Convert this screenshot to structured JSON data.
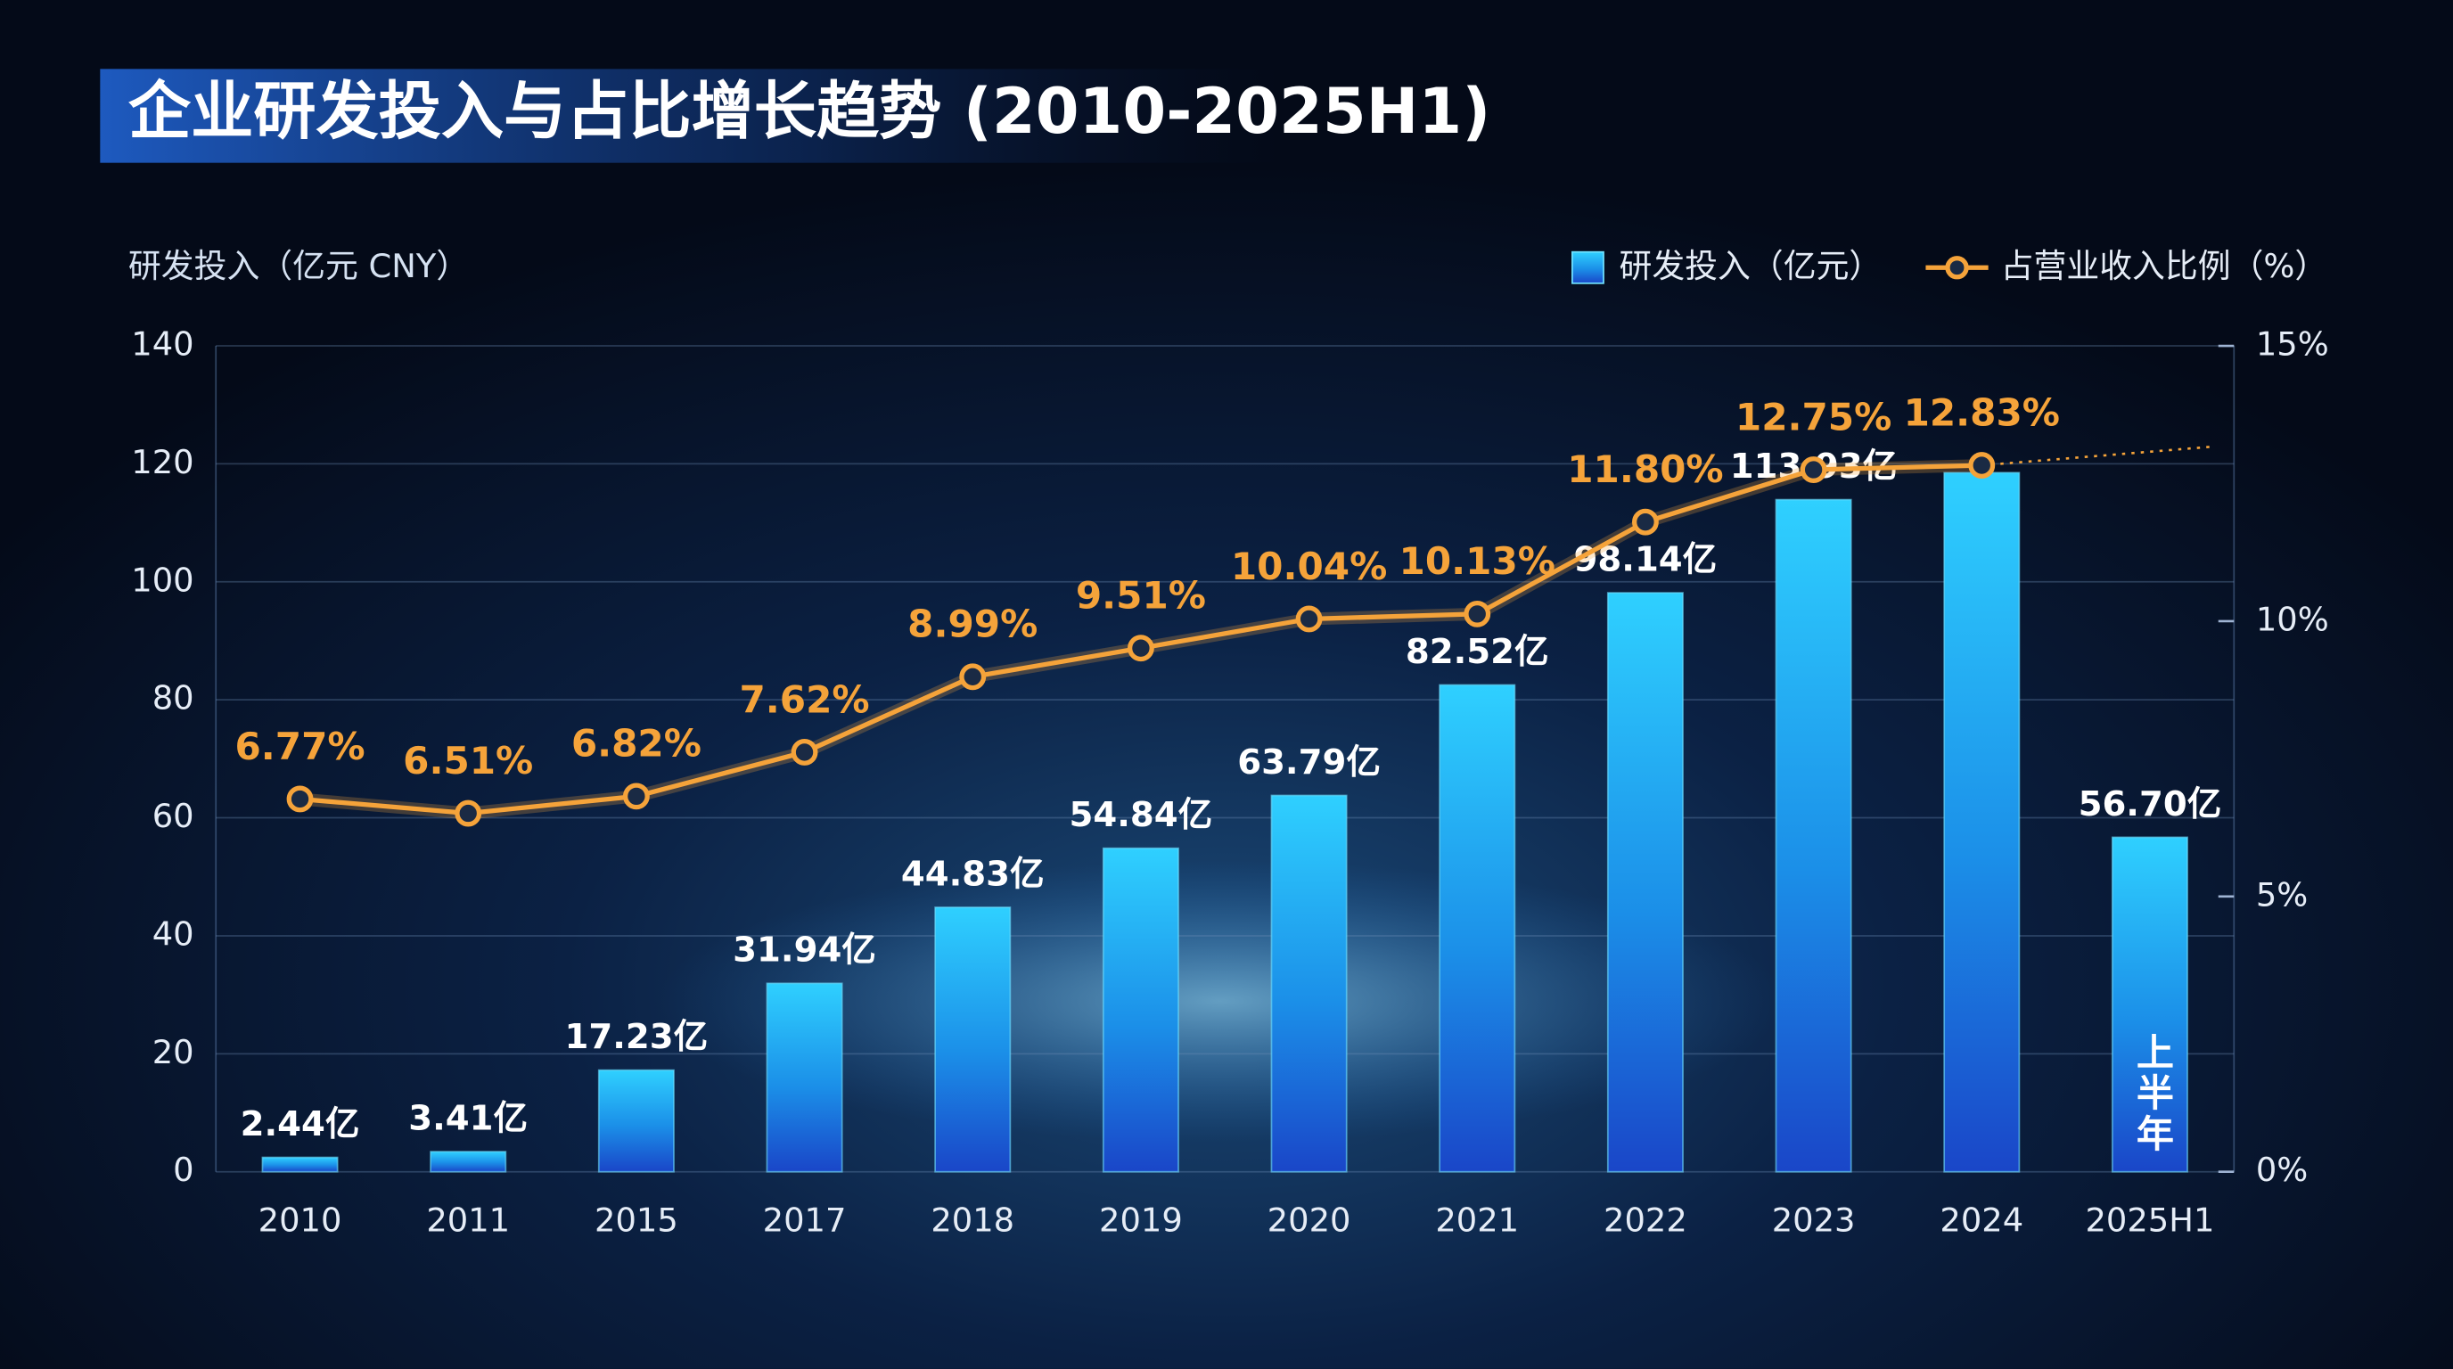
{
  "chart_data": {
    "type": "bar",
    "title": "企业研发投入与占比增长趋势 (2010-2025H1)",
    "y_label": "研发投入（亿元 CNY）",
    "annotation": "上半年",
    "categories": [
      "2010",
      "2011",
      "2015",
      "2017",
      "2018",
      "2019",
      "2020",
      "2021",
      "2022",
      "2023",
      "2024",
      "2025H1"
    ],
    "series": [
      {
        "name": "研发投入（亿元）",
        "type": "bar",
        "axis": "y",
        "color": "#22b8ff",
        "values": [
          2.44,
          3.41,
          17.23,
          31.94,
          44.83,
          54.84,
          63.79,
          82.52,
          98.14,
          113.93,
          118.5,
          56.7
        ],
        "value_labels": [
          "2.44亿",
          "3.41亿",
          "17.23亿",
          "31.94亿",
          "44.83亿",
          "54.84亿",
          "63.79亿",
          "82.52亿",
          "98.14亿",
          "113.93亿",
          null,
          "56.70亿"
        ]
      },
      {
        "name": "占营业收入比例（%）",
        "type": "line",
        "axis": "y2",
        "color": "#f5a33a",
        "values": [
          6.77,
          6.51,
          6.82,
          7.62,
          8.99,
          9.51,
          10.04,
          10.13,
          11.8,
          12.75,
          12.83,
          null
        ],
        "value_labels": [
          "6.77%",
          "6.51%",
          "6.82%",
          "7.62%",
          "8.99%",
          "9.51%",
          "10.04%",
          "10.13%",
          "11.80%",
          "12.75%",
          "12.83%",
          null
        ]
      }
    ],
    "ylim": [
      0,
      140
    ],
    "yticks": [
      0,
      20,
      40,
      60,
      80,
      100,
      120,
      140
    ],
    "y2lim": [
      0,
      15
    ],
    "y2ticks": [
      {
        "value": 0,
        "label": "0%"
      },
      {
        "value": 5,
        "label": "5%"
      },
      {
        "value": 10,
        "label": "10%"
      },
      {
        "value": 15,
        "label": "15%"
      }
    ],
    "grid": true,
    "legend": "top-right"
  }
}
